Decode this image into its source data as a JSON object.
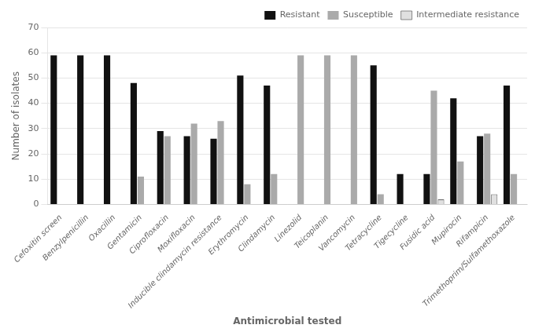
{
  "chart_data": {
    "type": "bar",
    "categories": [
      "Cefoxitin screen",
      "Benzylpenicillin",
      "Oxacillin",
      "Gentamicin",
      "Ciprofloxacin",
      "Moxifloxacin",
      "Inducible clindamycin resistance",
      "Erythromycin",
      "Clindamycin",
      "Linezolid",
      "Teicoplanin",
      "Vancomycin",
      "Tetracycline",
      "Tigecycline",
      "Fusidic acid",
      "Mupirocin",
      "Rifampicin",
      "Trimethoprim/Sulfamethoxazole"
    ],
    "series": [
      {
        "name": "Resistant",
        "color": "#111111",
        "values": [
          59,
          59,
          59,
          48,
          29,
          27,
          26,
          51,
          47,
          0,
          0,
          0,
          55,
          12,
          12,
          42,
          27,
          47
        ]
      },
      {
        "name": "Susceptible",
        "color": "#aaaaaa",
        "values": [
          0,
          0,
          0,
          11,
          27,
          32,
          33,
          8,
          12,
          59,
          59,
          59,
          4,
          0,
          45,
          17,
          28,
          12
        ]
      },
      {
        "name": "Intermediate resistance",
        "color": "#e0e0e0",
        "values": [
          0,
          0,
          0,
          0,
          0,
          0,
          0,
          0,
          0,
          0,
          0,
          0,
          0,
          0,
          2,
          0,
          4,
          0
        ]
      }
    ],
    "xlabel": "Antimicrobial tested",
    "ylabel": "Number of isolates",
    "ylim": [
      0,
      70
    ],
    "yticks": [
      0,
      10,
      20,
      30,
      40,
      50,
      60,
      70
    ],
    "grid": true,
    "legend": "upper right"
  }
}
